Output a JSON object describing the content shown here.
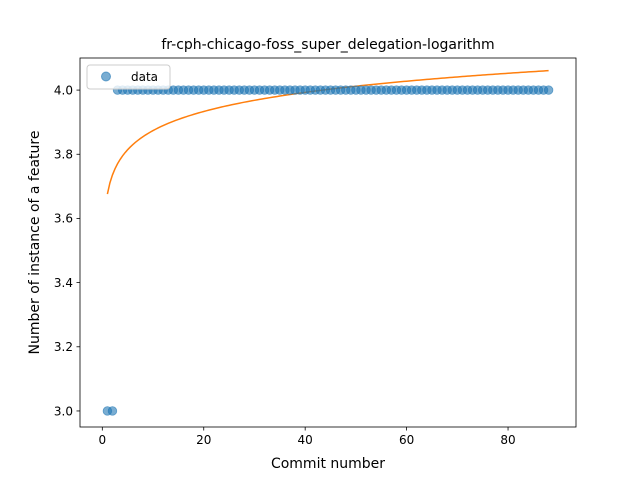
{
  "chart_data": {
    "type": "scatter",
    "title": "fr-cph-chicago-foss_super_delegation-logarithm",
    "xlabel": "Commit number",
    "ylabel": "Number of instance of a feature",
    "xlim": [
      -4.4,
      93.4
    ],
    "ylim": [
      2.95,
      4.1
    ],
    "xticks": [
      0,
      20,
      40,
      60,
      80
    ],
    "yticks": [
      3.0,
      3.2,
      3.4,
      3.6,
      3.8,
      4.0
    ],
    "ytick_labels": [
      "3.0",
      "3.2",
      "3.4",
      "3.6",
      "3.8",
      "4.0"
    ],
    "grid": false,
    "legend": {
      "placement": "upper-left",
      "entries": [
        "data"
      ]
    },
    "series": [
      {
        "name": "data",
        "kind": "scatter",
        "color": "#1f77b4",
        "x": [
          1,
          2,
          3,
          4,
          5,
          6,
          7,
          8,
          9,
          10,
          11,
          12,
          13,
          14,
          15,
          16,
          17,
          18,
          19,
          20,
          21,
          22,
          23,
          24,
          25,
          26,
          27,
          28,
          29,
          30,
          31,
          32,
          33,
          34,
          35,
          36,
          37,
          38,
          39,
          40,
          41,
          42,
          43,
          44,
          45,
          46,
          47,
          48,
          49,
          50,
          51,
          52,
          53,
          54,
          55,
          56,
          57,
          58,
          59,
          60,
          61,
          62,
          63,
          64,
          65,
          66,
          67,
          68,
          69,
          70,
          71,
          72,
          73,
          74,
          75,
          76,
          77,
          78,
          79,
          80,
          81,
          82,
          83,
          84,
          85,
          86,
          87,
          88
        ],
        "y": [
          3,
          3,
          4,
          4,
          4,
          4,
          4,
          4,
          4,
          4,
          4,
          4,
          4,
          4,
          4,
          4,
          4,
          4,
          4,
          4,
          4,
          4,
          4,
          4,
          4,
          4,
          4,
          4,
          4,
          4,
          4,
          4,
          4,
          4,
          4,
          4,
          4,
          4,
          4,
          4,
          4,
          4,
          4,
          4,
          4,
          4,
          4,
          4,
          4,
          4,
          4,
          4,
          4,
          4,
          4,
          4,
          4,
          4,
          4,
          4,
          4,
          4,
          4,
          4,
          4,
          4,
          4,
          4,
          4,
          4,
          4,
          4,
          4,
          4,
          4,
          4,
          4,
          4,
          4,
          4,
          4,
          4,
          4,
          4,
          4,
          4,
          4,
          4
        ]
      },
      {
        "kind": "line",
        "color": "#ff7f0e",
        "fit": {
          "model": "logarithmic",
          "a": 3.676,
          "b": 0.0859
        },
        "x_range": [
          1,
          88
        ]
      }
    ]
  }
}
